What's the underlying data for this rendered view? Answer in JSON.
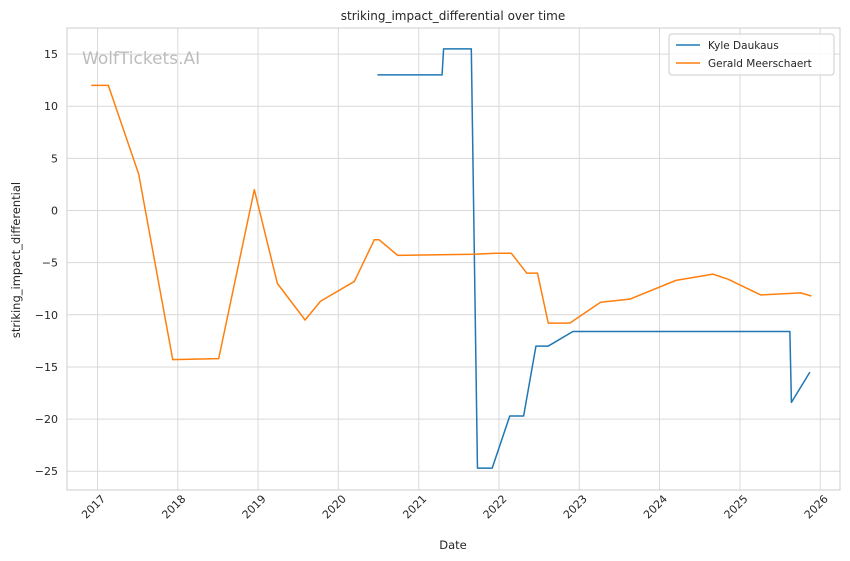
{
  "watermark": "WolfTickets.AI",
  "chart_data": {
    "type": "line",
    "title": "striking_impact_differential over time",
    "xlabel": "Date",
    "ylabel": "striking_impact_differential",
    "x_ticks": [
      "2017",
      "2018",
      "2019",
      "2020",
      "2021",
      "2022",
      "2023",
      "2024",
      "2025",
      "2026"
    ],
    "y_ticks": [
      15,
      10,
      5,
      0,
      -5,
      -10,
      -15,
      -20,
      -25
    ],
    "xlim": [
      "2016-08-15",
      "2026-04-01"
    ],
    "ylim": [
      -26.8,
      17.5
    ],
    "grid": true,
    "legend_position": "top-right",
    "series": [
      {
        "name": "Kyle Daukaus",
        "color": "#1f77b4",
        "points": [
          [
            "2020-06-27",
            13.0
          ],
          [
            "2021-04-17",
            13.0
          ],
          [
            "2021-04-24",
            15.5
          ],
          [
            "2021-08-28",
            15.5
          ],
          [
            "2021-09-25",
            -24.7
          ],
          [
            "2021-12-01",
            -24.7
          ],
          [
            "2022-02-19",
            -19.7
          ],
          [
            "2022-04-23",
            -19.7
          ],
          [
            "2022-06-18",
            -13.0
          ],
          [
            "2022-08-13",
            -13.0
          ],
          [
            "2022-12-03",
            -11.6
          ],
          [
            "2025-08-16",
            -11.6
          ],
          [
            "2025-08-23",
            -18.4
          ],
          [
            "2025-11-15",
            -15.5
          ]
        ]
      },
      {
        "name": "Gerald Meerschaert",
        "color": "#ff7f0e",
        "points": [
          [
            "2016-12-03",
            12.0
          ],
          [
            "2017-02-19",
            12.0
          ],
          [
            "2017-07-07",
            3.5
          ],
          [
            "2017-12-09",
            -14.3
          ],
          [
            "2018-07-06",
            -14.2
          ],
          [
            "2018-12-15",
            2.0
          ],
          [
            "2019-03-30",
            -7.0
          ],
          [
            "2019-08-03",
            -10.5
          ],
          [
            "2019-10-12",
            -8.7
          ],
          [
            "2020-03-14",
            -6.8
          ],
          [
            "2020-06-13",
            -2.8
          ],
          [
            "2020-07-04",
            -2.8
          ],
          [
            "2020-09-27",
            -4.3
          ],
          [
            "2021-09-04",
            -4.2
          ],
          [
            "2021-12-18",
            -4.1
          ],
          [
            "2022-02-26",
            -4.1
          ],
          [
            "2022-05-07",
            -6.0
          ],
          [
            "2022-06-25",
            -6.0
          ],
          [
            "2022-08-13",
            -10.8
          ],
          [
            "2022-11-19",
            -10.8
          ],
          [
            "2023-04-08",
            -8.8
          ],
          [
            "2023-08-19",
            -8.5
          ],
          [
            "2024-03-16",
            -6.7
          ],
          [
            "2024-08-31",
            -6.1
          ],
          [
            "2024-11-09",
            -6.6
          ],
          [
            "2025-04-05",
            -8.1
          ],
          [
            "2025-10-04",
            -7.9
          ],
          [
            "2025-11-22",
            -8.2
          ]
        ]
      }
    ]
  }
}
